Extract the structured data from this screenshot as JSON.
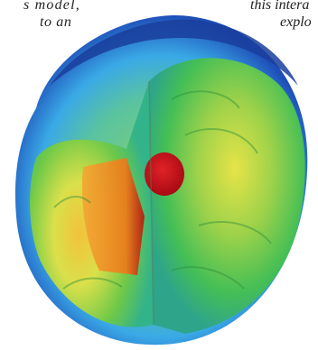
{
  "captions": {
    "left_line1": "s model,",
    "left_line2": "to an",
    "right_line1": "this intera",
    "right_line2": "explo"
  },
  "image": {
    "subject": "cutaway sphere simulation render",
    "colors": {
      "outer_shell": "#1e4fb8",
      "mid_blue": "#3aa9e6",
      "green": "#4cc24a",
      "yellow": "#e9e23a",
      "orange": "#f08a1c",
      "red_core": "#c8101e"
    }
  }
}
